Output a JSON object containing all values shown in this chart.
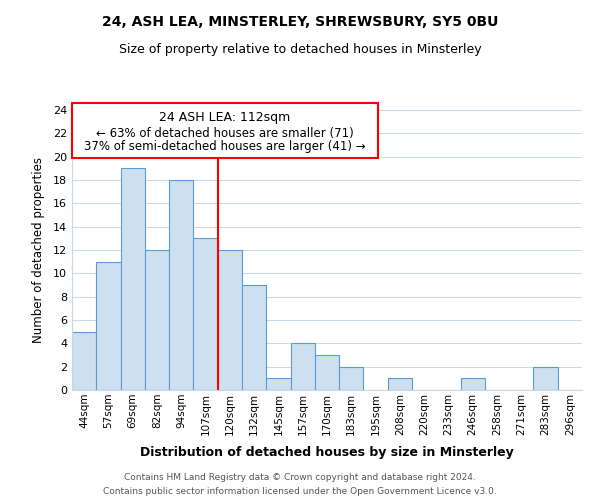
{
  "title": "24, ASH LEA, MINSTERLEY, SHREWSBURY, SY5 0BU",
  "subtitle": "Size of property relative to detached houses in Minsterley",
  "xlabel": "Distribution of detached houses by size in Minsterley",
  "ylabel": "Number of detached properties",
  "bar_labels": [
    "44sqm",
    "57sqm",
    "69sqm",
    "82sqm",
    "94sqm",
    "107sqm",
    "120sqm",
    "132sqm",
    "145sqm",
    "157sqm",
    "170sqm",
    "183sqm",
    "195sqm",
    "208sqm",
    "220sqm",
    "233sqm",
    "246sqm",
    "258sqm",
    "271sqm",
    "283sqm",
    "296sqm"
  ],
  "bar_values": [
    5,
    11,
    19,
    12,
    18,
    13,
    12,
    9,
    1,
    4,
    3,
    2,
    0,
    1,
    0,
    0,
    1,
    0,
    0,
    2,
    0
  ],
  "bar_color": "#cce0f0",
  "bar_edge_color": "#5b9bd5",
  "ylim": [
    0,
    24
  ],
  "yticks": [
    0,
    2,
    4,
    6,
    8,
    10,
    12,
    14,
    16,
    18,
    20,
    22,
    24
  ],
  "vline_x": 5.5,
  "vline_color": "red",
  "annotation_title": "24 ASH LEA: 112sqm",
  "annotation_line1": "← 63% of detached houses are smaller (71)",
  "annotation_line2": "37% of semi-detached houses are larger (41) →",
  "footer_line1": "Contains HM Land Registry data © Crown copyright and database right 2024.",
  "footer_line2": "Contains public sector information licensed under the Open Government Licence v3.0.",
  "background_color": "#ffffff",
  "grid_color": "#c8d8e8"
}
